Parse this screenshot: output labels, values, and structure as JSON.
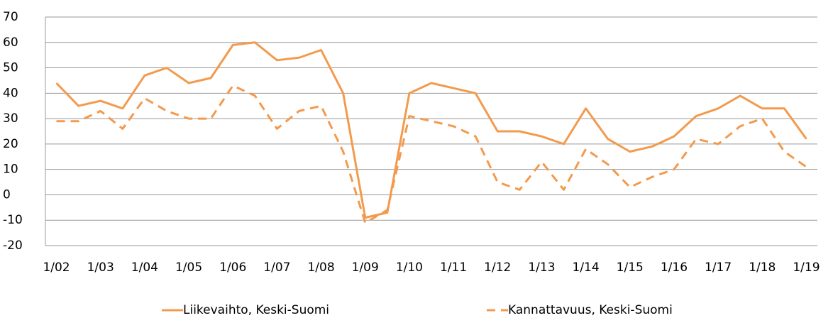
{
  "chart_data": {
    "type": "line",
    "categories": [
      "1/02",
      null,
      "1/03",
      null,
      "1/04",
      null,
      "1/05",
      null,
      "1/06",
      null,
      "1/07",
      null,
      "1/08",
      null,
      "1/09",
      null,
      "1/10",
      null,
      "1/11",
      null,
      "1/12",
      null,
      "1/13",
      null,
      "1/14",
      null,
      "1/15",
      null,
      "1/16",
      null,
      "1/17",
      null,
      "1/18",
      null,
      "1/19"
    ],
    "series": [
      {
        "name": "Liikevaihto, Keski-Suomi",
        "color": "#f39a4d",
        "dashed": false,
        "values": [
          44,
          35,
          37,
          34,
          47,
          50,
          44,
          46,
          59,
          60,
          53,
          54,
          57,
          40,
          -9,
          -7,
          40,
          44,
          42,
          40,
          25,
          25,
          23,
          20,
          34,
          22,
          17,
          19,
          23,
          31,
          34,
          39,
          34,
          34,
          22
        ]
      },
      {
        "name": "Kannattavuus, Keski-Suomi",
        "color": "#f39a4d",
        "dashed": true,
        "values": [
          29,
          29,
          33,
          26,
          38,
          33,
          30,
          30,
          43,
          39,
          26,
          33,
          35,
          17,
          -11,
          -6,
          31,
          29,
          27,
          23,
          5,
          2,
          13,
          2,
          18,
          12,
          3,
          7,
          10,
          22,
          20,
          27,
          30,
          17,
          11
        ]
      }
    ],
    "ylim": [
      -20,
      70
    ],
    "yticks": [
      -20,
      -10,
      0,
      10,
      20,
      30,
      40,
      50,
      60,
      70
    ],
    "grid": true,
    "legend": "bottom"
  }
}
